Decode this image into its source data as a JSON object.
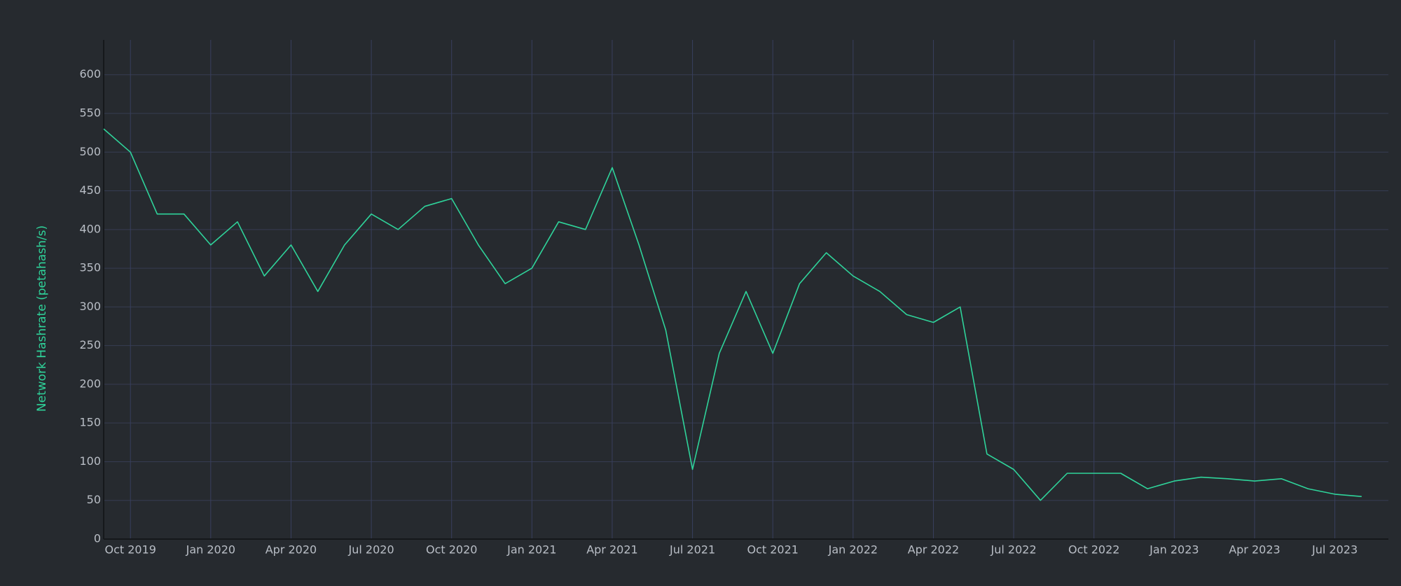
{
  "chart_data": {
    "type": "line",
    "y_label": "Network Hashrate (petahash/s)",
    "color": "#2fd39a",
    "grid": true,
    "x": [
      "2019-09",
      "2019-10",
      "2019-11",
      "2019-12",
      "2020-01",
      "2020-02",
      "2020-03",
      "2020-04",
      "2020-05",
      "2020-06",
      "2020-07",
      "2020-08",
      "2020-09",
      "2020-10",
      "2020-11",
      "2020-12",
      "2021-01",
      "2021-02",
      "2021-03",
      "2021-04",
      "2021-05",
      "2021-06",
      "2021-07",
      "2021-08",
      "2021-09",
      "2021-10",
      "2021-11",
      "2021-12",
      "2022-01",
      "2022-02",
      "2022-03",
      "2022-04",
      "2022-05",
      "2022-06",
      "2022-07",
      "2022-08",
      "2022-09",
      "2022-10",
      "2022-11",
      "2022-12",
      "2023-01",
      "2023-02",
      "2023-03",
      "2023-04",
      "2023-05",
      "2023-06",
      "2023-07",
      "2023-08"
    ],
    "values": [
      530,
      500,
      420,
      420,
      380,
      410,
      340,
      380,
      320,
      380,
      420,
      400,
      430,
      440,
      380,
      330,
      350,
      410,
      400,
      480,
      380,
      270,
      90,
      240,
      320,
      240,
      330,
      370,
      340,
      320,
      290,
      280,
      300,
      110,
      90,
      50,
      85,
      85,
      85,
      65,
      75,
      80,
      78,
      75,
      78,
      65,
      58,
      55
    ],
    "xlim": [
      "2019-09",
      "2023-09"
    ],
    "ylim": [
      0,
      645
    ],
    "yticks": [
      0,
      50,
      100,
      150,
      200,
      250,
      300,
      350,
      400,
      450,
      500,
      550,
      600
    ],
    "xticks": [
      {
        "value": "2019-10",
        "label": "Oct 2019"
      },
      {
        "value": "2020-01",
        "label": "Jan 2020"
      },
      {
        "value": "2020-04",
        "label": "Apr 2020"
      },
      {
        "value": "2020-07",
        "label": "Jul 2020"
      },
      {
        "value": "2020-10",
        "label": "Oct 2020"
      },
      {
        "value": "2021-01",
        "label": "Jan 2021"
      },
      {
        "value": "2021-04",
        "label": "Apr 2021"
      },
      {
        "value": "2021-07",
        "label": "Jul 2021"
      },
      {
        "value": "2021-10",
        "label": "Oct 2021"
      },
      {
        "value": "2022-01",
        "label": "Jan 2022"
      },
      {
        "value": "2022-04",
        "label": "Apr 2022"
      },
      {
        "value": "2022-07",
        "label": "Jul 2022"
      },
      {
        "value": "2022-10",
        "label": "Oct 2022"
      },
      {
        "value": "2023-01",
        "label": "Jan 2023"
      },
      {
        "value": "2023-04",
        "label": "Apr 2023"
      },
      {
        "value": "2023-07",
        "label": "Jul 2023"
      }
    ]
  }
}
